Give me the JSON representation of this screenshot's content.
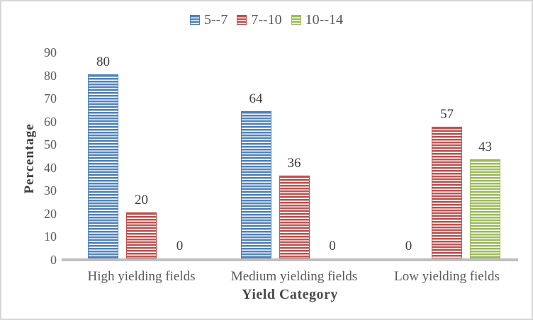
{
  "chart_data": {
    "type": "bar",
    "title": "",
    "categories": [
      "High yielding fields",
      "Medium yielding fields",
      "Low yielding fields"
    ],
    "series": [
      {
        "name": "5--7",
        "color": "#4F81BD",
        "values": [
          80,
          64,
          0
        ]
      },
      {
        "name": "7--10",
        "color": "#C0504D",
        "values": [
          20,
          36,
          57
        ]
      },
      {
        "name": "10--14",
        "color": "#9BBB59",
        "values": [
          0,
          0,
          43
        ]
      }
    ],
    "xlabel": "Yield Category",
    "ylabel": "Percentage",
    "ylim": [
      0,
      90
    ],
    "yticks": [
      0,
      10,
      20,
      30,
      40,
      50,
      60,
      70,
      80,
      90
    ],
    "grid": false,
    "legend_position": "top",
    "data_labels": true,
    "bar_pattern": "light-horizontal-stripes",
    "axis_line_color": "#BFBFBF",
    "tick_text_color": "#595959",
    "data_label_color": "#3d3d3d"
  }
}
